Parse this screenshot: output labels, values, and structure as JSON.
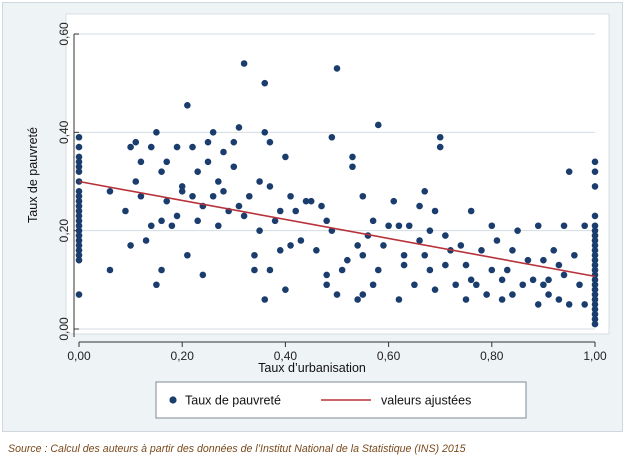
{
  "chart_data": {
    "type": "scatter",
    "xlabel": "Taux d’urbanisation",
    "ylabel": "Taux de pauvreté",
    "xlim": [
      0,
      1
    ],
    "ylim": [
      0,
      0.6
    ],
    "xticks": [
      "0,00",
      "0,20",
      "0,40",
      "0,60",
      "0,80",
      "1,00"
    ],
    "yticks": [
      "0,00",
      "0,20",
      "0,40",
      "0,60"
    ],
    "grid": "horizontal",
    "legend_position": "bottom",
    "series": [
      {
        "name": "Taux de pauvreté",
        "kind": "scatter",
        "color": "#1a3d6d",
        "points": [
          [
            0,
            0.39
          ],
          [
            0,
            0.37
          ],
          [
            0,
            0.35
          ],
          [
            0,
            0.34
          ],
          [
            0,
            0.33
          ],
          [
            0,
            0.32
          ],
          [
            0,
            0.3
          ],
          [
            0,
            0.28
          ],
          [
            0,
            0.27
          ],
          [
            0,
            0.26
          ],
          [
            0,
            0.25
          ],
          [
            0,
            0.24
          ],
          [
            0,
            0.23
          ],
          [
            0,
            0.22
          ],
          [
            0,
            0.21
          ],
          [
            0,
            0.2
          ],
          [
            0,
            0.19
          ],
          [
            0,
            0.18
          ],
          [
            0,
            0.17
          ],
          [
            0,
            0.16
          ],
          [
            0,
            0.15
          ],
          [
            0,
            0.14
          ],
          [
            0,
            0.07
          ],
          [
            0.06,
            0.28
          ],
          [
            0.06,
            0.12
          ],
          [
            0.09,
            0.24
          ],
          [
            0.1,
            0.37
          ],
          [
            0.1,
            0.17
          ],
          [
            0.11,
            0.38
          ],
          [
            0.11,
            0.3
          ],
          [
            0.12,
            0.34
          ],
          [
            0.12,
            0.27
          ],
          [
            0.13,
            0.18
          ],
          [
            0.14,
            0.37
          ],
          [
            0.14,
            0.21
          ],
          [
            0.15,
            0.4
          ],
          [
            0.15,
            0.09
          ],
          [
            0.16,
            0.32
          ],
          [
            0.16,
            0.22
          ],
          [
            0.16,
            0.12
          ],
          [
            0.17,
            0.34
          ],
          [
            0.17,
            0.26
          ],
          [
            0.18,
            0.21
          ],
          [
            0.19,
            0.37
          ],
          [
            0.19,
            0.23
          ],
          [
            0.2,
            0.29
          ],
          [
            0.2,
            0.28
          ],
          [
            0.21,
            0.455
          ],
          [
            0.21,
            0.15
          ],
          [
            0.22,
            0.37
          ],
          [
            0.22,
            0.27
          ],
          [
            0.23,
            0.32
          ],
          [
            0.23,
            0.22
          ],
          [
            0.24,
            0.25
          ],
          [
            0.24,
            0.11
          ],
          [
            0.25,
            0.38
          ],
          [
            0.25,
            0.34
          ],
          [
            0.26,
            0.4
          ],
          [
            0.26,
            0.27
          ],
          [
            0.27,
            0.3
          ],
          [
            0.27,
            0.21
          ],
          [
            0.28,
            0.36
          ],
          [
            0.28,
            0.28
          ],
          [
            0.29,
            0.24
          ],
          [
            0.3,
            0.38
          ],
          [
            0.3,
            0.33
          ],
          [
            0.31,
            0.41
          ],
          [
            0.31,
            0.25
          ],
          [
            0.32,
            0.54
          ],
          [
            0.32,
            0.23
          ],
          [
            0.33,
            0.27
          ],
          [
            0.34,
            0.15
          ],
          [
            0.34,
            0.12
          ],
          [
            0.35,
            0.3
          ],
          [
            0.35,
            0.2
          ],
          [
            0.36,
            0.5
          ],
          [
            0.36,
            0.4
          ],
          [
            0.36,
            0.06
          ],
          [
            0.37,
            0.38
          ],
          [
            0.37,
            0.29
          ],
          [
            0.37,
            0.12
          ],
          [
            0.38,
            0.22
          ],
          [
            0.39,
            0.24
          ],
          [
            0.39,
            0.16
          ],
          [
            0.4,
            0.35
          ],
          [
            0.4,
            0.08
          ],
          [
            0.41,
            0.27
          ],
          [
            0.41,
            0.17
          ],
          [
            0.42,
            0.24
          ],
          [
            0.43,
            0.18
          ],
          [
            0.44,
            0.26
          ],
          [
            0.45,
            0.26
          ],
          [
            0.46,
            0.16
          ],
          [
            0.47,
            0.25
          ],
          [
            0.48,
            0.22
          ],
          [
            0.48,
            0.11
          ],
          [
            0.48,
            0.09
          ],
          [
            0.49,
            0.39
          ],
          [
            0.49,
            0.2
          ],
          [
            0.5,
            0.53
          ],
          [
            0.5,
            0.07
          ],
          [
            0.51,
            0.12
          ],
          [
            0.52,
            0.14
          ],
          [
            0.53,
            0.35
          ],
          [
            0.53,
            0.33
          ],
          [
            0.54,
            0.17
          ],
          [
            0.54,
            0.06
          ],
          [
            0.55,
            0.27
          ],
          [
            0.55,
            0.15
          ],
          [
            0.55,
            0.07
          ],
          [
            0.56,
            0.19
          ],
          [
            0.57,
            0.22
          ],
          [
            0.57,
            0.09
          ],
          [
            0.58,
            0.12
          ],
          [
            0.58,
            0.415
          ],
          [
            0.59,
            0.17
          ],
          [
            0.6,
            0.21
          ],
          [
            0.61,
            0.26
          ],
          [
            0.62,
            0.21
          ],
          [
            0.62,
            0.06
          ],
          [
            0.63,
            0.15
          ],
          [
            0.63,
            0.13
          ],
          [
            0.64,
            0.21
          ],
          [
            0.65,
            0.09
          ],
          [
            0.66,
            0.25
          ],
          [
            0.66,
            0.18
          ],
          [
            0.67,
            0.15
          ],
          [
            0.67,
            0.28
          ],
          [
            0.68,
            0.2
          ],
          [
            0.68,
            0.12
          ],
          [
            0.69,
            0.24
          ],
          [
            0.69,
            0.08
          ],
          [
            0.7,
            0.37
          ],
          [
            0.7,
            0.39
          ],
          [
            0.71,
            0.19
          ],
          [
            0.71,
            0.13
          ],
          [
            0.72,
            0.16
          ],
          [
            0.73,
            0.09
          ],
          [
            0.74,
            0.17
          ],
          [
            0.75,
            0.13
          ],
          [
            0.75,
            0.06
          ],
          [
            0.76,
            0.24
          ],
          [
            0.76,
            0.1
          ],
          [
            0.77,
            0.09
          ],
          [
            0.78,
            0.16
          ],
          [
            0.79,
            0.07
          ],
          [
            0.8,
            0.21
          ],
          [
            0.8,
            0.12
          ],
          [
            0.81,
            0.18
          ],
          [
            0.82,
            0.06
          ],
          [
            0.82,
            0.1
          ],
          [
            0.83,
            0.12
          ],
          [
            0.84,
            0.16
          ],
          [
            0.84,
            0.07
          ],
          [
            0.85,
            0.2
          ],
          [
            0.86,
            0.09
          ],
          [
            0.87,
            0.14
          ],
          [
            0.88,
            0.1
          ],
          [
            0.89,
            0.05
          ],
          [
            0.89,
            0.21
          ],
          [
            0.9,
            0.14
          ],
          [
            0.9,
            0.09
          ],
          [
            0.91,
            0.1
          ],
          [
            0.91,
            0.07
          ],
          [
            0.92,
            0.16
          ],
          [
            0.93,
            0.13
          ],
          [
            0.93,
            0.06
          ],
          [
            0.94,
            0.21
          ],
          [
            0.94,
            0.11
          ],
          [
            0.95,
            0.32
          ],
          [
            0.95,
            0.05
          ],
          [
            0.96,
            0.15
          ],
          [
            0.97,
            0.09
          ],
          [
            0.98,
            0.21
          ],
          [
            0.98,
            0.05
          ],
          [
            1,
            0.34
          ],
          [
            1,
            0.32
          ],
          [
            1,
            0.29
          ],
          [
            1,
            0.23
          ],
          [
            1,
            0.21
          ],
          [
            1,
            0.2
          ],
          [
            1,
            0.19
          ],
          [
            1,
            0.18
          ],
          [
            1,
            0.17
          ],
          [
            1,
            0.16
          ],
          [
            1,
            0.15
          ],
          [
            1,
            0.14
          ],
          [
            1,
            0.13
          ],
          [
            1,
            0.12
          ],
          [
            1,
            0.11
          ],
          [
            1,
            0.1
          ],
          [
            1,
            0.09
          ],
          [
            1,
            0.08
          ],
          [
            1,
            0.07
          ],
          [
            1,
            0.06
          ],
          [
            1,
            0.05
          ],
          [
            1,
            0.04
          ],
          [
            1,
            0.03
          ],
          [
            1,
            0.02
          ],
          [
            1,
            0.01
          ]
        ]
      },
      {
        "name": "valeurs ajustées",
        "kind": "line",
        "color": "#b8323a",
        "points": [
          [
            0,
            0.3
          ],
          [
            1,
            0.107
          ]
        ]
      }
    ]
  },
  "source_note": "Source : Calcul des auteurs à partir des données de l’Institut National de la Statistique (INS) 2015"
}
